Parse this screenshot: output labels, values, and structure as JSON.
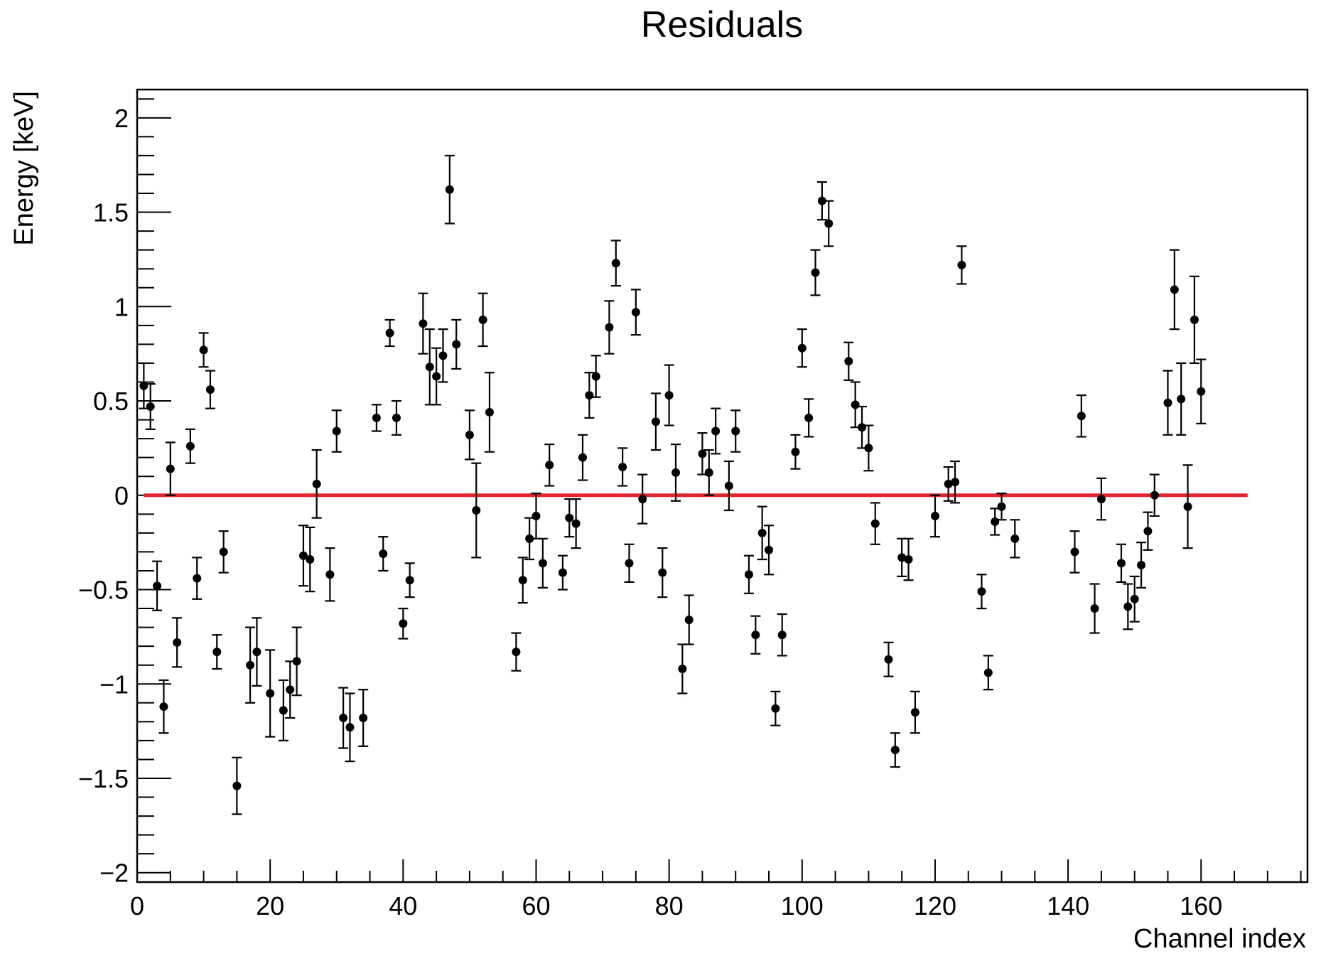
{
  "chart_data": {
    "type": "scatter",
    "title": "Residuals",
    "xlabel": "Channel index",
    "ylabel": "Energy [keV]",
    "xlim": [
      0,
      176
    ],
    "ylim": [
      -2.05,
      2.15
    ],
    "x_ticks": [
      0,
      20,
      40,
      60,
      80,
      100,
      120,
      140,
      160
    ],
    "x_tick_labels": [
      "0",
      "20",
      "40",
      "60",
      "80",
      "100",
      "120",
      "140",
      "160"
    ],
    "y_ticks": [
      -2,
      -1.5,
      -1,
      -0.5,
      0,
      0.5,
      1,
      1.5,
      2
    ],
    "y_tick_labels": [
      "−2",
      "−1.5",
      "−1",
      "−0.5",
      "0",
      "0.5",
      "1",
      "1.5",
      "2"
    ],
    "grid": false,
    "legend": "none",
    "reference_line": {
      "y": 0,
      "x_from": 1,
      "x_to": 167,
      "color": "#e3232c"
    },
    "marker_color": "#000000",
    "series": [
      {
        "points": [
          {
            "x": 1,
            "y": 0.58,
            "err": 0.12
          },
          {
            "x": 2,
            "y": 0.47,
            "err": 0.12
          },
          {
            "x": 3,
            "y": -0.48,
            "err": 0.13
          },
          {
            "x": 4,
            "y": -1.12,
            "err": 0.14
          },
          {
            "x": 5,
            "y": 0.14,
            "err": 0.14
          },
          {
            "x": 6,
            "y": -0.78,
            "err": 0.13
          },
          {
            "x": 8,
            "y": 0.26,
            "err": 0.09
          },
          {
            "x": 9,
            "y": -0.44,
            "err": 0.11
          },
          {
            "x": 10,
            "y": 0.77,
            "err": 0.09
          },
          {
            "x": 11,
            "y": 0.56,
            "err": 0.1
          },
          {
            "x": 12,
            "y": -0.83,
            "err": 0.09
          },
          {
            "x": 13,
            "y": -0.3,
            "err": 0.11
          },
          {
            "x": 15,
            "y": -1.54,
            "err": 0.15
          },
          {
            "x": 17,
            "y": -0.9,
            "err": 0.2
          },
          {
            "x": 18,
            "y": -0.83,
            "err": 0.18
          },
          {
            "x": 20,
            "y": -1.05,
            "err": 0.23
          },
          {
            "x": 22,
            "y": -1.14,
            "err": 0.16
          },
          {
            "x": 23,
            "y": -1.03,
            "err": 0.15
          },
          {
            "x": 24,
            "y": -0.88,
            "err": 0.18
          },
          {
            "x": 25,
            "y": -0.32,
            "err": 0.16
          },
          {
            "x": 26,
            "y": -0.34,
            "err": 0.17
          },
          {
            "x": 27,
            "y": 0.06,
            "err": 0.18
          },
          {
            "x": 29,
            "y": -0.42,
            "err": 0.14
          },
          {
            "x": 30,
            "y": 0.34,
            "err": 0.11
          },
          {
            "x": 31,
            "y": -1.18,
            "err": 0.16
          },
          {
            "x": 32,
            "y": -1.23,
            "err": 0.18
          },
          {
            "x": 34,
            "y": -1.18,
            "err": 0.15
          },
          {
            "x": 36,
            "y": 0.41,
            "err": 0.07
          },
          {
            "x": 37,
            "y": -0.31,
            "err": 0.09
          },
          {
            "x": 38,
            "y": 0.86,
            "err": 0.07
          },
          {
            "x": 39,
            "y": 0.41,
            "err": 0.09
          },
          {
            "x": 40,
            "y": -0.68,
            "err": 0.08
          },
          {
            "x": 41,
            "y": -0.45,
            "err": 0.09
          },
          {
            "x": 43,
            "y": 0.91,
            "err": 0.16
          },
          {
            "x": 44,
            "y": 0.68,
            "err": 0.2
          },
          {
            "x": 45,
            "y": 0.63,
            "err": 0.15
          },
          {
            "x": 46,
            "y": 0.74,
            "err": 0.14
          },
          {
            "x": 47,
            "y": 1.62,
            "err": 0.18
          },
          {
            "x": 48,
            "y": 0.8,
            "err": 0.13
          },
          {
            "x": 50,
            "y": 0.32,
            "err": 0.13
          },
          {
            "x": 51,
            "y": -0.08,
            "err": 0.25
          },
          {
            "x": 52,
            "y": 0.93,
            "err": 0.14
          },
          {
            "x": 53,
            "y": 0.44,
            "err": 0.21
          },
          {
            "x": 57,
            "y": -0.83,
            "err": 0.1
          },
          {
            "x": 58,
            "y": -0.45,
            "err": 0.12
          },
          {
            "x": 59,
            "y": -0.23,
            "err": 0.11
          },
          {
            "x": 60,
            "y": -0.11,
            "err": 0.12
          },
          {
            "x": 61,
            "y": -0.36,
            "err": 0.13
          },
          {
            "x": 62,
            "y": 0.16,
            "err": 0.11
          },
          {
            "x": 64,
            "y": -0.41,
            "err": 0.09
          },
          {
            "x": 65,
            "y": -0.12,
            "err": 0.1
          },
          {
            "x": 66,
            "y": -0.15,
            "err": 0.13
          },
          {
            "x": 67,
            "y": 0.2,
            "err": 0.12
          },
          {
            "x": 68,
            "y": 0.53,
            "err": 0.12
          },
          {
            "x": 69,
            "y": 0.63,
            "err": 0.11
          },
          {
            "x": 71,
            "y": 0.89,
            "err": 0.14
          },
          {
            "x": 72,
            "y": 1.23,
            "err": 0.12
          },
          {
            "x": 73,
            "y": 0.15,
            "err": 0.1
          },
          {
            "x": 74,
            "y": -0.36,
            "err": 0.1
          },
          {
            "x": 75,
            "y": 0.97,
            "err": 0.12
          },
          {
            "x": 76,
            "y": -0.02,
            "err": 0.13
          },
          {
            "x": 78,
            "y": 0.39,
            "err": 0.15
          },
          {
            "x": 79,
            "y": -0.41,
            "err": 0.13
          },
          {
            "x": 80,
            "y": 0.53,
            "err": 0.16
          },
          {
            "x": 81,
            "y": 0.12,
            "err": 0.15
          },
          {
            "x": 82,
            "y": -0.92,
            "err": 0.13
          },
          {
            "x": 83,
            "y": -0.66,
            "err": 0.13
          },
          {
            "x": 85,
            "y": 0.22,
            "err": 0.11
          },
          {
            "x": 86,
            "y": 0.12,
            "err": 0.12
          },
          {
            "x": 87,
            "y": 0.34,
            "err": 0.12
          },
          {
            "x": 89,
            "y": 0.05,
            "err": 0.13
          },
          {
            "x": 90,
            "y": 0.34,
            "err": 0.11
          },
          {
            "x": 92,
            "y": -0.42,
            "err": 0.1
          },
          {
            "x": 93,
            "y": -0.74,
            "err": 0.1
          },
          {
            "x": 94,
            "y": -0.2,
            "err": 0.14
          },
          {
            "x": 95,
            "y": -0.29,
            "err": 0.13
          },
          {
            "x": 96,
            "y": -1.13,
            "err": 0.09
          },
          {
            "x": 97,
            "y": -0.74,
            "err": 0.11
          },
          {
            "x": 99,
            "y": 0.23,
            "err": 0.09
          },
          {
            "x": 100,
            "y": 0.78,
            "err": 0.1
          },
          {
            "x": 101,
            "y": 0.41,
            "err": 0.1
          },
          {
            "x": 102,
            "y": 1.18,
            "err": 0.12
          },
          {
            "x": 103,
            "y": 1.56,
            "err": 0.1
          },
          {
            "x": 104,
            "y": 1.44,
            "err": 0.12
          },
          {
            "x": 107,
            "y": 0.71,
            "err": 0.1
          },
          {
            "x": 108,
            "y": 0.48,
            "err": 0.12
          },
          {
            "x": 109,
            "y": 0.36,
            "err": 0.11
          },
          {
            "x": 110,
            "y": 0.25,
            "err": 0.12
          },
          {
            "x": 111,
            "y": -0.15,
            "err": 0.11
          },
          {
            "x": 113,
            "y": -0.87,
            "err": 0.09
          },
          {
            "x": 114,
            "y": -1.35,
            "err": 0.09
          },
          {
            "x": 115,
            "y": -0.33,
            "err": 0.1
          },
          {
            "x": 116,
            "y": -0.34,
            "err": 0.11
          },
          {
            "x": 117,
            "y": -1.15,
            "err": 0.11
          },
          {
            "x": 120,
            "y": -0.11,
            "err": 0.11
          },
          {
            "x": 122,
            "y": 0.06,
            "err": 0.09
          },
          {
            "x": 123,
            "y": 0.07,
            "err": 0.11
          },
          {
            "x": 124,
            "y": 1.22,
            "err": 0.1
          },
          {
            "x": 127,
            "y": -0.51,
            "err": 0.09
          },
          {
            "x": 128,
            "y": -0.94,
            "err": 0.09
          },
          {
            "x": 129,
            "y": -0.14,
            "err": 0.07
          },
          {
            "x": 130,
            "y": -0.06,
            "err": 0.07
          },
          {
            "x": 132,
            "y": -0.23,
            "err": 0.1
          },
          {
            "x": 141,
            "y": -0.3,
            "err": 0.11
          },
          {
            "x": 142,
            "y": 0.42,
            "err": 0.11
          },
          {
            "x": 144,
            "y": -0.6,
            "err": 0.13
          },
          {
            "x": 145,
            "y": -0.02,
            "err": 0.11
          },
          {
            "x": 148,
            "y": -0.36,
            "err": 0.1
          },
          {
            "x": 149,
            "y": -0.59,
            "err": 0.12
          },
          {
            "x": 150,
            "y": -0.55,
            "err": 0.12
          },
          {
            "x": 151,
            "y": -0.37,
            "err": 0.12
          },
          {
            "x": 152,
            "y": -0.19,
            "err": 0.1
          },
          {
            "x": 153,
            "y": 0.0,
            "err": 0.11
          },
          {
            "x": 155,
            "y": 0.49,
            "err": 0.17
          },
          {
            "x": 156,
            "y": 1.09,
            "err": 0.21
          },
          {
            "x": 157,
            "y": 0.51,
            "err": 0.19
          },
          {
            "x": 158,
            "y": -0.06,
            "err": 0.22
          },
          {
            "x": 159,
            "y": 0.93,
            "err": 0.23
          },
          {
            "x": 160,
            "y": 0.55,
            "err": 0.17
          }
        ]
      }
    ]
  }
}
